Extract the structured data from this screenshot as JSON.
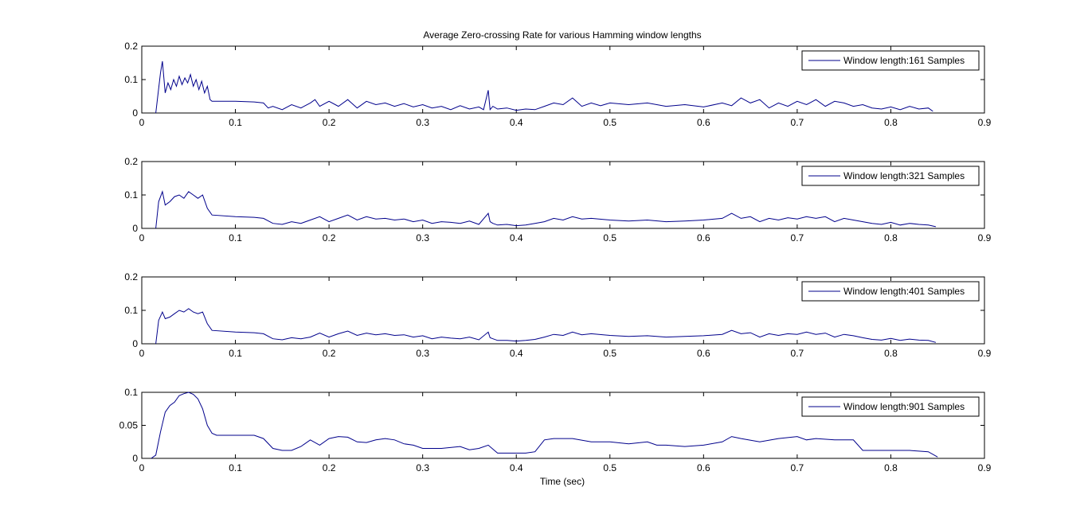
{
  "figure": {
    "title": "Average Zero-crossing Rate for various Hamming window lengths",
    "xlabel": "Time (sec)",
    "line_color": "#00008b"
  },
  "chart_data": [
    {
      "type": "line",
      "xlim": [
        0,
        0.9
      ],
      "ylim": [
        0,
        0.2
      ],
      "xticks": [
        "0",
        "0.1",
        "0.2",
        "0.3",
        "0.4",
        "0.5",
        "0.6",
        "0.7",
        "0.8",
        "0.9"
      ],
      "yticks": [
        "0",
        "0.1",
        "0.2"
      ],
      "legend_position": "top-right",
      "series": [
        {
          "name": "Window length:161 Samples",
          "x": [
            0.015,
            0.02,
            0.022,
            0.025,
            0.028,
            0.031,
            0.034,
            0.037,
            0.04,
            0.043,
            0.046,
            0.049,
            0.052,
            0.055,
            0.058,
            0.061,
            0.064,
            0.067,
            0.07,
            0.073,
            0.075,
            0.1,
            0.12,
            0.13,
            0.135,
            0.14,
            0.15,
            0.16,
            0.17,
            0.18,
            0.185,
            0.19,
            0.2,
            0.21,
            0.22,
            0.23,
            0.24,
            0.25,
            0.26,
            0.27,
            0.28,
            0.29,
            0.3,
            0.31,
            0.32,
            0.33,
            0.34,
            0.35,
            0.36,
            0.365,
            0.37,
            0.372,
            0.375,
            0.38,
            0.39,
            0.4,
            0.41,
            0.42,
            0.43,
            0.44,
            0.45,
            0.46,
            0.47,
            0.48,
            0.49,
            0.5,
            0.52,
            0.54,
            0.56,
            0.58,
            0.6,
            0.62,
            0.63,
            0.64,
            0.65,
            0.66,
            0.67,
            0.68,
            0.69,
            0.7,
            0.71,
            0.72,
            0.73,
            0.74,
            0.75,
            0.76,
            0.77,
            0.78,
            0.79,
            0.8,
            0.81,
            0.82,
            0.83,
            0.84,
            0.845
          ],
          "y": [
            0,
            0.12,
            0.155,
            0.06,
            0.09,
            0.07,
            0.1,
            0.08,
            0.11,
            0.085,
            0.105,
            0.09,
            0.115,
            0.08,
            0.1,
            0.07,
            0.095,
            0.06,
            0.08,
            0.04,
            0.035,
            0.035,
            0.033,
            0.03,
            0.015,
            0.02,
            0.01,
            0.025,
            0.015,
            0.03,
            0.04,
            0.02,
            0.035,
            0.02,
            0.04,
            0.015,
            0.035,
            0.025,
            0.03,
            0.02,
            0.028,
            0.018,
            0.025,
            0.015,
            0.02,
            0.01,
            0.022,
            0.012,
            0.018,
            0.01,
            0.068,
            0.01,
            0.02,
            0.012,
            0.015,
            0.008,
            0.012,
            0.01,
            0.02,
            0.03,
            0.025,
            0.045,
            0.02,
            0.03,
            0.022,
            0.03,
            0.025,
            0.03,
            0.02,
            0.025,
            0.018,
            0.03,
            0.022,
            0.045,
            0.03,
            0.04,
            0.015,
            0.03,
            0.02,
            0.035,
            0.025,
            0.04,
            0.02,
            0.035,
            0.03,
            0.02,
            0.025,
            0.015,
            0.012,
            0.018,
            0.01,
            0.02,
            0.012,
            0.015,
            0.005
          ]
        }
      ]
    },
    {
      "type": "line",
      "xlim": [
        0,
        0.9
      ],
      "ylim": [
        0,
        0.2
      ],
      "xticks": [
        "0",
        "0.1",
        "0.2",
        "0.3",
        "0.4",
        "0.5",
        "0.6",
        "0.7",
        "0.8",
        "0.9"
      ],
      "yticks": [
        "0",
        "0.1",
        "0.2"
      ],
      "legend_position": "top-right",
      "series": [
        {
          "name": "Window length:321 Samples",
          "x": [
            0.015,
            0.018,
            0.022,
            0.025,
            0.03,
            0.035,
            0.04,
            0.045,
            0.05,
            0.055,
            0.06,
            0.065,
            0.07,
            0.075,
            0.1,
            0.12,
            0.13,
            0.14,
            0.15,
            0.16,
            0.17,
            0.18,
            0.19,
            0.2,
            0.21,
            0.22,
            0.23,
            0.24,
            0.25,
            0.26,
            0.27,
            0.28,
            0.29,
            0.3,
            0.31,
            0.32,
            0.33,
            0.34,
            0.35,
            0.36,
            0.37,
            0.372,
            0.375,
            0.38,
            0.39,
            0.4,
            0.41,
            0.42,
            0.43,
            0.44,
            0.45,
            0.46,
            0.47,
            0.48,
            0.5,
            0.52,
            0.54,
            0.56,
            0.58,
            0.6,
            0.62,
            0.63,
            0.64,
            0.65,
            0.66,
            0.67,
            0.68,
            0.69,
            0.7,
            0.71,
            0.72,
            0.73,
            0.74,
            0.75,
            0.76,
            0.77,
            0.78,
            0.79,
            0.8,
            0.81,
            0.82,
            0.83,
            0.84,
            0.848
          ],
          "y": [
            0,
            0.08,
            0.11,
            0.07,
            0.08,
            0.095,
            0.1,
            0.09,
            0.11,
            0.1,
            0.09,
            0.1,
            0.06,
            0.04,
            0.035,
            0.033,
            0.03,
            0.015,
            0.012,
            0.02,
            0.015,
            0.025,
            0.035,
            0.02,
            0.03,
            0.04,
            0.025,
            0.035,
            0.028,
            0.03,
            0.025,
            0.028,
            0.02,
            0.025,
            0.015,
            0.02,
            0.018,
            0.015,
            0.022,
            0.012,
            0.045,
            0.02,
            0.015,
            0.01,
            0.012,
            0.008,
            0.01,
            0.015,
            0.02,
            0.03,
            0.025,
            0.035,
            0.028,
            0.03,
            0.025,
            0.022,
            0.025,
            0.02,
            0.022,
            0.025,
            0.03,
            0.045,
            0.03,
            0.035,
            0.02,
            0.03,
            0.025,
            0.032,
            0.028,
            0.035,
            0.03,
            0.035,
            0.02,
            0.03,
            0.025,
            0.02,
            0.015,
            0.012,
            0.018,
            0.01,
            0.015,
            0.012,
            0.01,
            0.005
          ]
        }
      ]
    },
    {
      "type": "line",
      "xlim": [
        0,
        0.9
      ],
      "ylim": [
        0,
        0.2
      ],
      "xticks": [
        "0",
        "0.1",
        "0.2",
        "0.3",
        "0.4",
        "0.5",
        "0.6",
        "0.7",
        "0.8",
        "0.9"
      ],
      "yticks": [
        "0",
        "0.1",
        "0.2"
      ],
      "legend_position": "top-right",
      "series": [
        {
          "name": "Window length:401 Samples",
          "x": [
            0.015,
            0.018,
            0.022,
            0.025,
            0.03,
            0.035,
            0.04,
            0.045,
            0.05,
            0.055,
            0.06,
            0.065,
            0.07,
            0.075,
            0.1,
            0.12,
            0.13,
            0.14,
            0.15,
            0.16,
            0.17,
            0.18,
            0.19,
            0.2,
            0.21,
            0.22,
            0.23,
            0.24,
            0.25,
            0.26,
            0.27,
            0.28,
            0.29,
            0.3,
            0.31,
            0.32,
            0.33,
            0.34,
            0.35,
            0.36,
            0.37,
            0.372,
            0.375,
            0.38,
            0.39,
            0.4,
            0.41,
            0.42,
            0.43,
            0.44,
            0.45,
            0.46,
            0.47,
            0.48,
            0.5,
            0.52,
            0.54,
            0.56,
            0.58,
            0.6,
            0.62,
            0.63,
            0.64,
            0.65,
            0.66,
            0.67,
            0.68,
            0.69,
            0.7,
            0.71,
            0.72,
            0.73,
            0.74,
            0.75,
            0.76,
            0.77,
            0.78,
            0.79,
            0.8,
            0.81,
            0.82,
            0.83,
            0.84,
            0.848
          ],
          "y": [
            0,
            0.07,
            0.095,
            0.075,
            0.08,
            0.09,
            0.1,
            0.095,
            0.105,
            0.095,
            0.09,
            0.095,
            0.06,
            0.04,
            0.035,
            0.033,
            0.03,
            0.015,
            0.012,
            0.018,
            0.015,
            0.02,
            0.032,
            0.02,
            0.03,
            0.038,
            0.025,
            0.032,
            0.027,
            0.03,
            0.025,
            0.027,
            0.02,
            0.024,
            0.015,
            0.02,
            0.017,
            0.015,
            0.02,
            0.012,
            0.035,
            0.018,
            0.015,
            0.01,
            0.01,
            0.008,
            0.01,
            0.013,
            0.02,
            0.028,
            0.025,
            0.035,
            0.027,
            0.03,
            0.025,
            0.022,
            0.024,
            0.02,
            0.022,
            0.024,
            0.028,
            0.04,
            0.03,
            0.033,
            0.02,
            0.03,
            0.025,
            0.03,
            0.028,
            0.035,
            0.028,
            0.032,
            0.02,
            0.028,
            0.024,
            0.018,
            0.013,
            0.011,
            0.016,
            0.01,
            0.014,
            0.011,
            0.01,
            0.004
          ]
        }
      ]
    },
    {
      "type": "line",
      "xlim": [
        0,
        0.9
      ],
      "ylim": [
        0,
        0.1
      ],
      "xticks": [
        "0",
        "0.1",
        "0.2",
        "0.3",
        "0.4",
        "0.5",
        "0.6",
        "0.7",
        "0.8",
        "0.9"
      ],
      "yticks": [
        "0",
        "0.05",
        "0.1"
      ],
      "legend_position": "top-right",
      "series": [
        {
          "name": "Window length:901 Samples",
          "x": [
            0.01,
            0.015,
            0.02,
            0.025,
            0.03,
            0.035,
            0.04,
            0.045,
            0.05,
            0.055,
            0.06,
            0.065,
            0.07,
            0.075,
            0.08,
            0.1,
            0.12,
            0.13,
            0.14,
            0.15,
            0.16,
            0.17,
            0.18,
            0.19,
            0.2,
            0.21,
            0.22,
            0.23,
            0.24,
            0.25,
            0.26,
            0.27,
            0.28,
            0.29,
            0.3,
            0.32,
            0.34,
            0.35,
            0.36,
            0.37,
            0.38,
            0.4,
            0.41,
            0.42,
            0.43,
            0.44,
            0.46,
            0.48,
            0.5,
            0.52,
            0.54,
            0.55,
            0.56,
            0.58,
            0.6,
            0.62,
            0.63,
            0.64,
            0.66,
            0.68,
            0.7,
            0.71,
            0.72,
            0.74,
            0.76,
            0.77,
            0.78,
            0.8,
            0.82,
            0.84,
            0.85
          ],
          "y": [
            0,
            0.005,
            0.04,
            0.07,
            0.08,
            0.085,
            0.095,
            0.098,
            0.1,
            0.097,
            0.09,
            0.075,
            0.05,
            0.038,
            0.035,
            0.035,
            0.035,
            0.03,
            0.015,
            0.012,
            0.012,
            0.018,
            0.028,
            0.02,
            0.03,
            0.033,
            0.032,
            0.025,
            0.024,
            0.028,
            0.03,
            0.028,
            0.022,
            0.02,
            0.015,
            0.015,
            0.018,
            0.013,
            0.015,
            0.02,
            0.008,
            0.008,
            0.008,
            0.01,
            0.028,
            0.03,
            0.03,
            0.025,
            0.025,
            0.022,
            0.025,
            0.02,
            0.02,
            0.018,
            0.02,
            0.025,
            0.033,
            0.03,
            0.025,
            0.03,
            0.033,
            0.028,
            0.03,
            0.028,
            0.028,
            0.012,
            0.012,
            0.012,
            0.012,
            0.01,
            0.002
          ]
        }
      ]
    }
  ]
}
